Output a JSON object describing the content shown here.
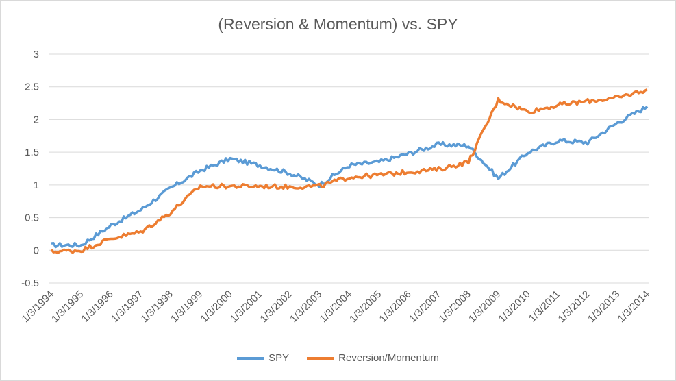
{
  "chart_data": {
    "type": "line",
    "title": "(Reversion & Momentum) vs. SPY",
    "xlabel": "",
    "ylabel": "",
    "ylim": [
      -0.5,
      3
    ],
    "y_ticks": [
      "-0.5",
      "0",
      "0.5",
      "1",
      "1.5",
      "2",
      "2.5",
      "3"
    ],
    "x_ticks": [
      "1/3/1994",
      "1/3/1995",
      "1/3/1996",
      "1/3/1997",
      "1/3/1998",
      "1/3/1999",
      "1/3/2000",
      "1/3/2001",
      "1/3/2002",
      "1/3/2003",
      "1/3/2004",
      "1/3/2005",
      "1/3/2006",
      "1/3/2007",
      "1/3/2008",
      "1/3/2009",
      "1/3/2010",
      "1/3/2011",
      "1/3/2012",
      "1/3/2013",
      "1/3/2014"
    ],
    "x": [
      "1/3/1994",
      "1/3/1995",
      "1/3/1996",
      "1/3/1997",
      "1/3/1998",
      "1/3/1999",
      "1/3/2000",
      "1/3/2001",
      "1/3/2002",
      "1/3/2003",
      "1/3/2004",
      "1/3/2005",
      "1/3/2006",
      "1/3/2007",
      "1/3/2008",
      "1/3/2009",
      "1/3/2010",
      "1/3/2011",
      "1/3/2012",
      "1/3/2013",
      "1/3/2014"
    ],
    "grid": true,
    "legend_position": "bottom",
    "series": [
      {
        "name": "SPY",
        "color": "#5b9bd5",
        "values": [
          0.08,
          0.08,
          0.38,
          0.62,
          0.95,
          1.22,
          1.4,
          1.3,
          1.18,
          1.0,
          1.3,
          1.35,
          1.48,
          1.62,
          1.6,
          1.1,
          1.5,
          1.68,
          1.65,
          1.95,
          2.2
        ]
      },
      {
        "name": "Reversion/Momentum",
        "color": "#ed7d31",
        "values": [
          -0.02,
          0.0,
          0.18,
          0.28,
          0.58,
          0.98,
          0.98,
          0.98,
          0.97,
          0.98,
          1.12,
          1.15,
          1.2,
          1.24,
          1.35,
          2.3,
          2.12,
          2.22,
          2.28,
          2.33,
          2.46
        ]
      }
    ]
  }
}
